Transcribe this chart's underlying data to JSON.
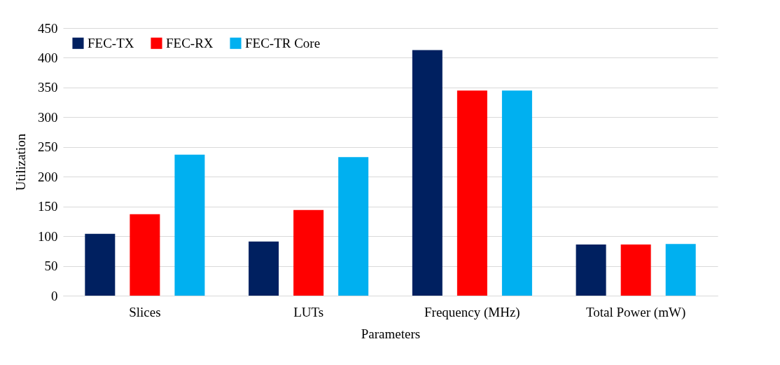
{
  "chart_data": {
    "type": "bar",
    "xlabel": "Parameters",
    "ylabel": "Utilization",
    "categories": [
      "Slices",
      "LUTs",
      "Frequency (MHz)",
      "Total Power (mW)"
    ],
    "series": [
      {
        "name": "FEC-TX",
        "color": "#002060",
        "values": [
          104,
          91,
          413,
          86
        ]
      },
      {
        "name": "FEC-RX",
        "color": "#ff0000",
        "values": [
          137,
          144,
          345,
          86
        ]
      },
      {
        "name": "FEC-TR Core",
        "color": "#00b0f0",
        "values": [
          237,
          233,
          345,
          87
        ]
      }
    ],
    "ylim": [
      0,
      450
    ],
    "yticks": [
      0,
      50,
      100,
      150,
      200,
      250,
      300,
      350,
      400,
      450
    ],
    "grid": "y",
    "legend": "top left"
  }
}
